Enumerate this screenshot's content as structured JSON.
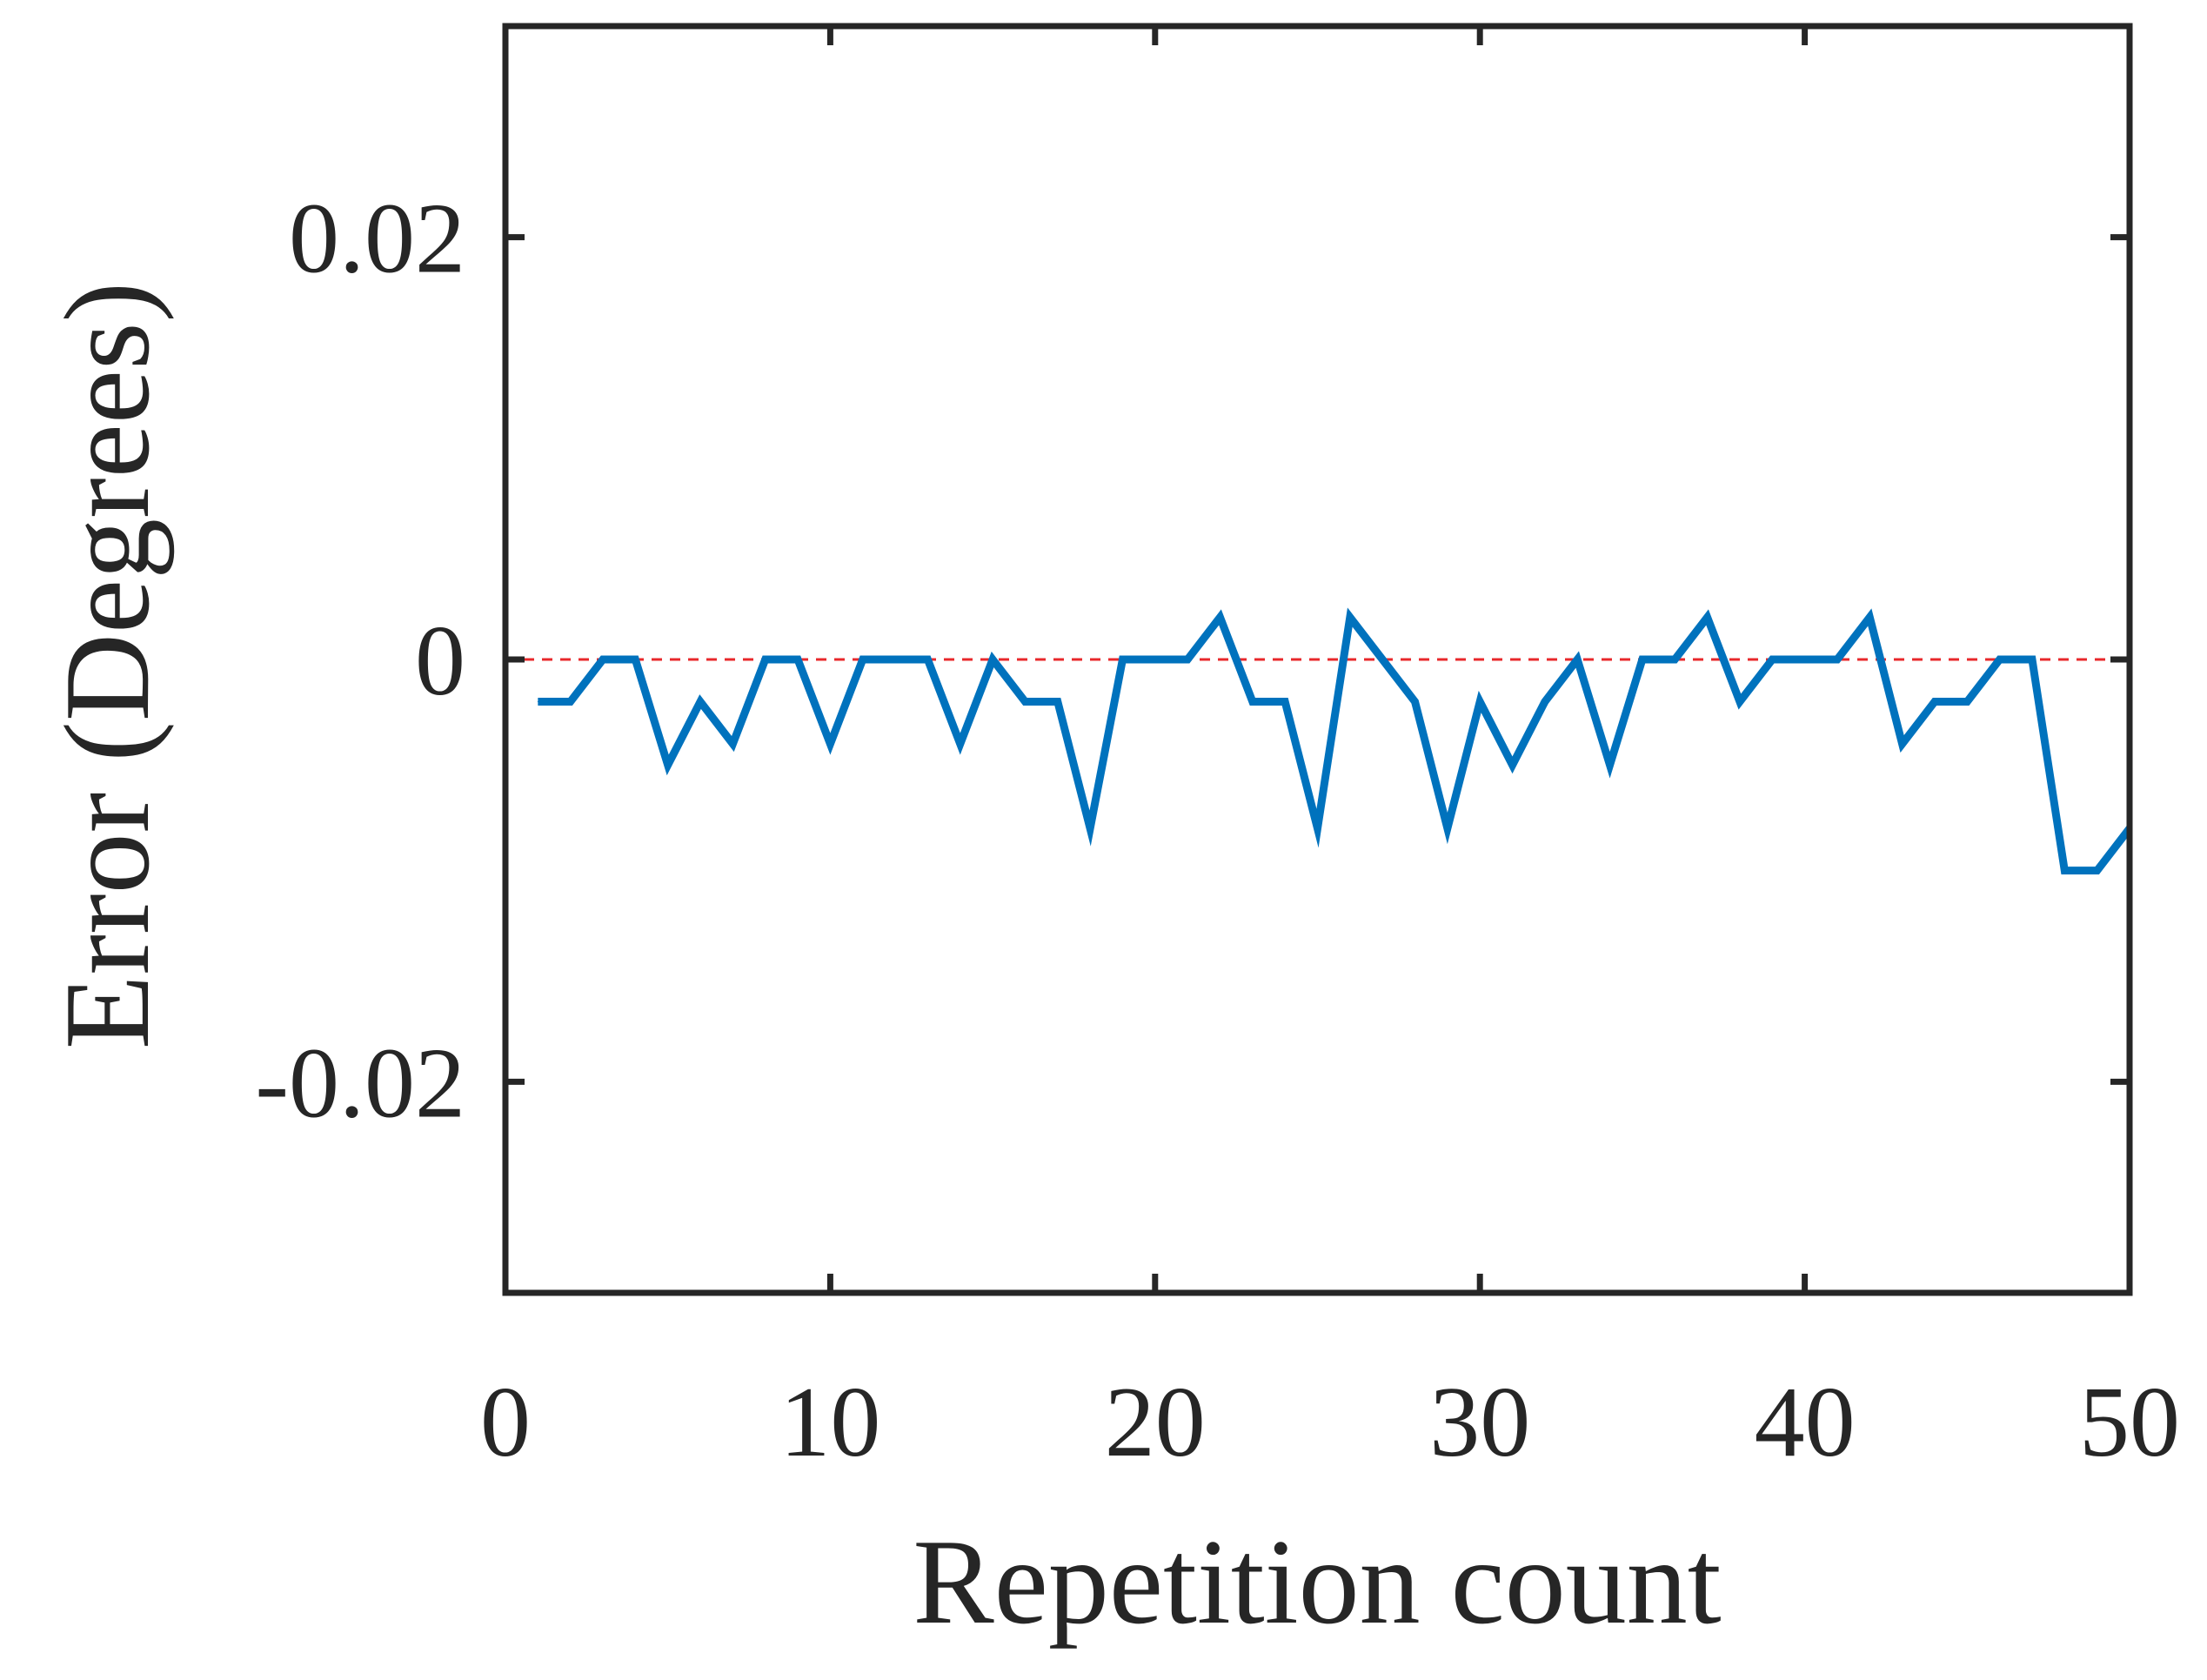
{
  "chart_data": {
    "type": "line",
    "title": "",
    "xlabel": "Repetition count",
    "ylabel": "Error (Degrees)",
    "xlim": [
      0,
      50
    ],
    "ylim": [
      -0.03,
      0.03
    ],
    "xticks": [
      0,
      10,
      20,
      30,
      40,
      50
    ],
    "xtick_labels": [
      "0",
      "10",
      "20",
      "30",
      "40",
      "50"
    ],
    "yticks": [
      -0.02,
      0,
      0.02
    ],
    "ytick_labels": [
      "-0.02",
      "0",
      "0.02"
    ],
    "grid": false,
    "legend": "none",
    "series": [
      {
        "color": "#0072bd",
        "x": [
          1,
          2,
          3,
          4,
          5,
          6,
          7,
          8,
          9,
          10,
          11,
          12,
          13,
          14,
          15,
          16,
          17,
          18,
          19,
          20,
          21,
          22,
          23,
          24,
          25,
          26,
          27,
          28,
          29,
          30,
          31,
          32,
          33,
          34,
          35,
          36,
          37,
          38,
          39,
          40,
          41,
          42,
          43,
          44,
          45,
          46,
          47,
          48,
          49,
          50
        ],
        "values": [
          -0.002,
          -0.002,
          0,
          0,
          -0.005,
          -0.002,
          -0.004,
          0,
          0,
          -0.004,
          0,
          0,
          0,
          -0.004,
          0,
          -0.002,
          -0.002,
          -0.008,
          0,
          0,
          0,
          0.002,
          -0.002,
          -0.002,
          -0.008,
          0.002,
          0,
          -0.002,
          -0.008,
          -0.002,
          -0.005,
          -0.002,
          0,
          -0.005,
          0,
          0,
          0.002,
          -0.002,
          0,
          0,
          0,
          0.002,
          -0.004,
          -0.002,
          -0.002,
          0,
          0,
          -0.01,
          -0.01,
          -0.008
        ]
      }
    ],
    "reference_line": {
      "y": 0,
      "style": "dashed",
      "color": "#e8282b"
    }
  }
}
